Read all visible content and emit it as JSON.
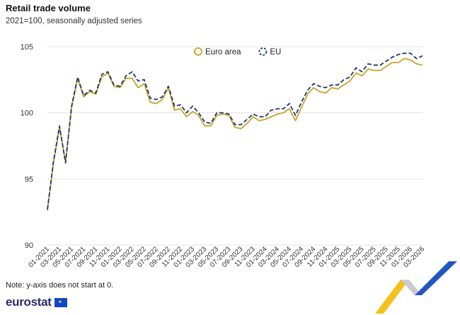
{
  "header": {
    "title": "Retail trade volume",
    "subtitle": "2021=100, seasonally adjusted series"
  },
  "footer": {
    "note": "Note: y-axis does not start at 0.",
    "brand": "eurostat"
  },
  "colors": {
    "euro_area": "#c9a227",
    "eu": "#1f3a72",
    "grid": "#e3e3e3",
    "ribbon_yellow": "#f2c21b",
    "ribbon_blue": "#2255c4"
  },
  "chart_data": {
    "type": "line",
    "ylim": [
      90,
      105
    ],
    "yticks": [
      90,
      95,
      100,
      105
    ],
    "legend_position": "top",
    "grid": true,
    "x_tick_labels": [
      "01-2021",
      "03-2021",
      "05-2021",
      "07-2021",
      "09-2021",
      "11-2021",
      "01-2022",
      "03-2022",
      "05-2022",
      "07-2022",
      "09-2022",
      "11-2022",
      "01-2023",
      "03-2023",
      "05-2023",
      "07-2023",
      "09-2023",
      "11-2023",
      "01-2024",
      "03-2024",
      "05-2024",
      "07-2024",
      "09-2024",
      "11-2024",
      "01-2025",
      "03-2025",
      "05-2025",
      "07-2025",
      "09-2025",
      "11-2025",
      "01-2026",
      "03-2026"
    ],
    "x": [
      "01-2021",
      "02-2021",
      "03-2021",
      "04-2021",
      "05-2021",
      "06-2021",
      "07-2021",
      "08-2021",
      "09-2021",
      "10-2021",
      "11-2021",
      "12-2021",
      "01-2022",
      "02-2022",
      "03-2022",
      "04-2022",
      "05-2022",
      "06-2022",
      "07-2022",
      "08-2022",
      "09-2022",
      "10-2022",
      "11-2022",
      "12-2022",
      "01-2023",
      "02-2023",
      "03-2023",
      "04-2023",
      "05-2023",
      "06-2023",
      "07-2023",
      "08-2023",
      "09-2023",
      "10-2023",
      "11-2023",
      "12-2023",
      "01-2024",
      "02-2024",
      "03-2024",
      "04-2024",
      "05-2024",
      "06-2024",
      "07-2024",
      "08-2024",
      "09-2024",
      "10-2024",
      "11-2024",
      "12-2024",
      "01-2025",
      "02-2025",
      "03-2025",
      "04-2025",
      "05-2025",
      "06-2025",
      "07-2025",
      "08-2025",
      "09-2025",
      "10-2025",
      "11-2025",
      "12-2025",
      "01-2026",
      "02-2026",
      "03-2026"
    ],
    "series": [
      {
        "name": "Euro area",
        "style": "solid",
        "values": [
          92.6,
          96.2,
          98.9,
          96.3,
          100.4,
          102.6,
          101.2,
          101.6,
          101.4,
          102.7,
          103.0,
          102.0,
          101.9,
          102.6,
          102.6,
          101.9,
          102.2,
          100.8,
          100.7,
          101.0,
          101.9,
          100.2,
          100.3,
          99.7,
          100.1,
          99.8,
          99.0,
          99.0,
          99.8,
          99.9,
          99.8,
          98.9,
          98.8,
          99.2,
          99.7,
          99.4,
          99.5,
          99.7,
          99.9,
          100.0,
          100.3,
          99.4,
          100.4,
          101.4,
          101.9,
          101.6,
          101.5,
          101.9,
          101.8,
          102.1,
          102.4,
          103.0,
          102.8,
          103.3,
          103.2,
          103.2,
          103.5,
          103.8,
          103.8,
          104.1,
          104.0,
          103.7,
          103.6
        ]
      },
      {
        "name": "EU",
        "style": "dashed",
        "values": [
          92.7,
          96.3,
          99.0,
          96.2,
          100.5,
          102.7,
          101.3,
          101.7,
          101.5,
          102.9,
          103.1,
          102.1,
          102.0,
          102.8,
          103.1,
          102.4,
          102.5,
          101.1,
          101.0,
          101.2,
          102.0,
          100.5,
          100.6,
          100.0,
          100.5,
          100.0,
          99.3,
          99.2,
          100.0,
          100.0,
          99.9,
          99.1,
          99.1,
          99.5,
          99.9,
          99.7,
          99.7,
          100.2,
          100.3,
          100.3,
          100.7,
          99.8,
          100.8,
          101.7,
          102.2,
          102.0,
          101.9,
          102.1,
          102.1,
          102.5,
          102.7,
          103.4,
          103.1,
          103.7,
          103.6,
          103.6,
          103.9,
          104.2,
          104.4,
          104.5,
          104.5,
          104.1,
          104.3
        ]
      }
    ]
  }
}
